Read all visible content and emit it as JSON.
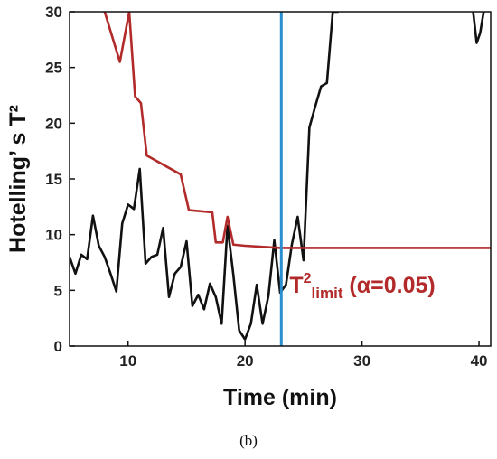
{
  "caption": "(b)",
  "chart_data": {
    "type": "line",
    "title": "",
    "xlabel": "Time (min)",
    "ylabel": "Hotelling’ s T²",
    "xlim": [
      5,
      41
    ],
    "ylim": [
      0,
      30
    ],
    "xticks": [
      10,
      20,
      30,
      40
    ],
    "yticks": [
      0,
      5,
      10,
      15,
      20,
      25,
      30
    ],
    "grid": false,
    "series": [
      {
        "color": "#111111",
        "x": [
          5,
          5.5,
          6,
          6.5,
          7,
          7.5,
          8,
          8.5,
          9,
          9.5,
          10,
          10.5,
          11,
          11.5,
          12,
          12.5,
          13,
          13.5,
          14,
          14.5,
          15,
          15.5,
          16,
          16.5,
          17,
          17.5,
          18,
          18.5,
          19,
          19.5,
          20,
          20.5,
          21,
          21.5,
          22,
          22.5,
          23,
          23.5,
          24,
          24.5,
          25,
          25.5,
          26,
          26.5,
          27,
          27.5,
          28
        ],
        "y": [
          8,
          6.5,
          8.2,
          7.8,
          11.7,
          9,
          8,
          6.5,
          4.9,
          11,
          12.7,
          12.3,
          15.9,
          7.4,
          8,
          8.2,
          10.6,
          4.4,
          6.5,
          7.1,
          9.4,
          3.6,
          4.6,
          3.3,
          5.6,
          4.4,
          2,
          10.8,
          6.4,
          1.4,
          0.6,
          2,
          5.5,
          2,
          4.5,
          9.5,
          4.8,
          5.5,
          9.1,
          11.6,
          7.7,
          19.6,
          21.5,
          23.3,
          23.6,
          30,
          30
        ]
      },
      {
        "color": "#111111",
        "x": [
          39.5,
          39.8,
          40.1,
          40.4
        ],
        "y": [
          30,
          27.2,
          28.1,
          30
        ]
      },
      {
        "color": "#b22a2a",
        "x": [
          8,
          9.3,
          10.1,
          10.6,
          11.1,
          11.6,
          14.5,
          15.2,
          17.2,
          17.5,
          18.1,
          18.5,
          19,
          20,
          23,
          25,
          30,
          35,
          41
        ],
        "y": [
          30,
          25.5,
          30,
          22.4,
          21.8,
          17.1,
          15.4,
          12.2,
          12,
          9.3,
          9.3,
          11.6,
          9.1,
          9.0,
          8.8,
          8.8,
          8.8,
          8.8,
          8.8
        ]
      }
    ],
    "vline": {
      "x": 23.1,
      "color": "#2a8fd0"
    },
    "annotation": {
      "main": "T",
      "sup": "2",
      "sub": "limit",
      "rest": " (α=0.05)",
      "x": 23.8,
      "y": 5.5
    }
  }
}
